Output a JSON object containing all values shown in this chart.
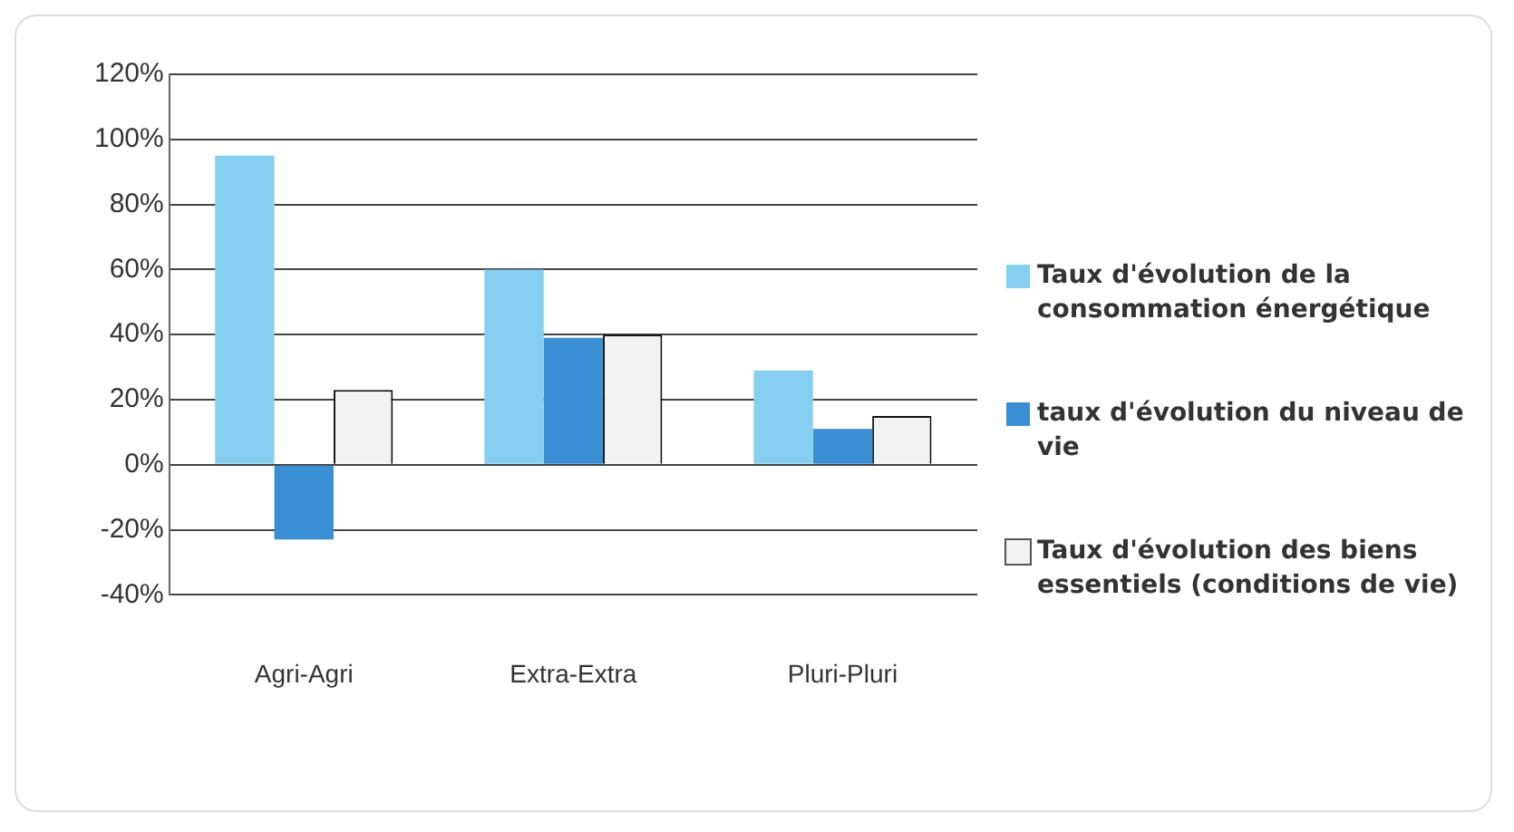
{
  "chart_data": {
    "type": "bar",
    "categories": [
      "Agri-Agri",
      "Extra-Extra",
      "Pluri-Pluri"
    ],
    "series": [
      {
        "name": "Taux d'évolution de la consommation énergétique",
        "color": "#87cff0",
        "values": [
          95,
          60,
          29
        ]
      },
      {
        "name": "taux d'évolution du niveau de vie",
        "color": "#3a8fd4",
        "values": [
          -23,
          39,
          11
        ]
      },
      {
        "name": "Taux d'évolution des biens essentiels (conditions de vie)",
        "color": "#f2f2f2",
        "values": [
          23,
          40,
          15
        ]
      }
    ],
    "ylim": [
      -40,
      120
    ],
    "yticks": [
      {
        "value": -40,
        "label": "-40%"
      },
      {
        "value": -20,
        "label": "-20%"
      },
      {
        "value": 0,
        "label": "0%"
      },
      {
        "value": 20,
        "label": "20%"
      },
      {
        "value": 40,
        "label": "40%"
      },
      {
        "value": 60,
        "label": "60%"
      },
      {
        "value": 80,
        "label": "80%"
      },
      {
        "value": 100,
        "label": "100%"
      },
      {
        "value": 120,
        "label": "120%"
      }
    ],
    "grid": "y",
    "legend": "right"
  }
}
